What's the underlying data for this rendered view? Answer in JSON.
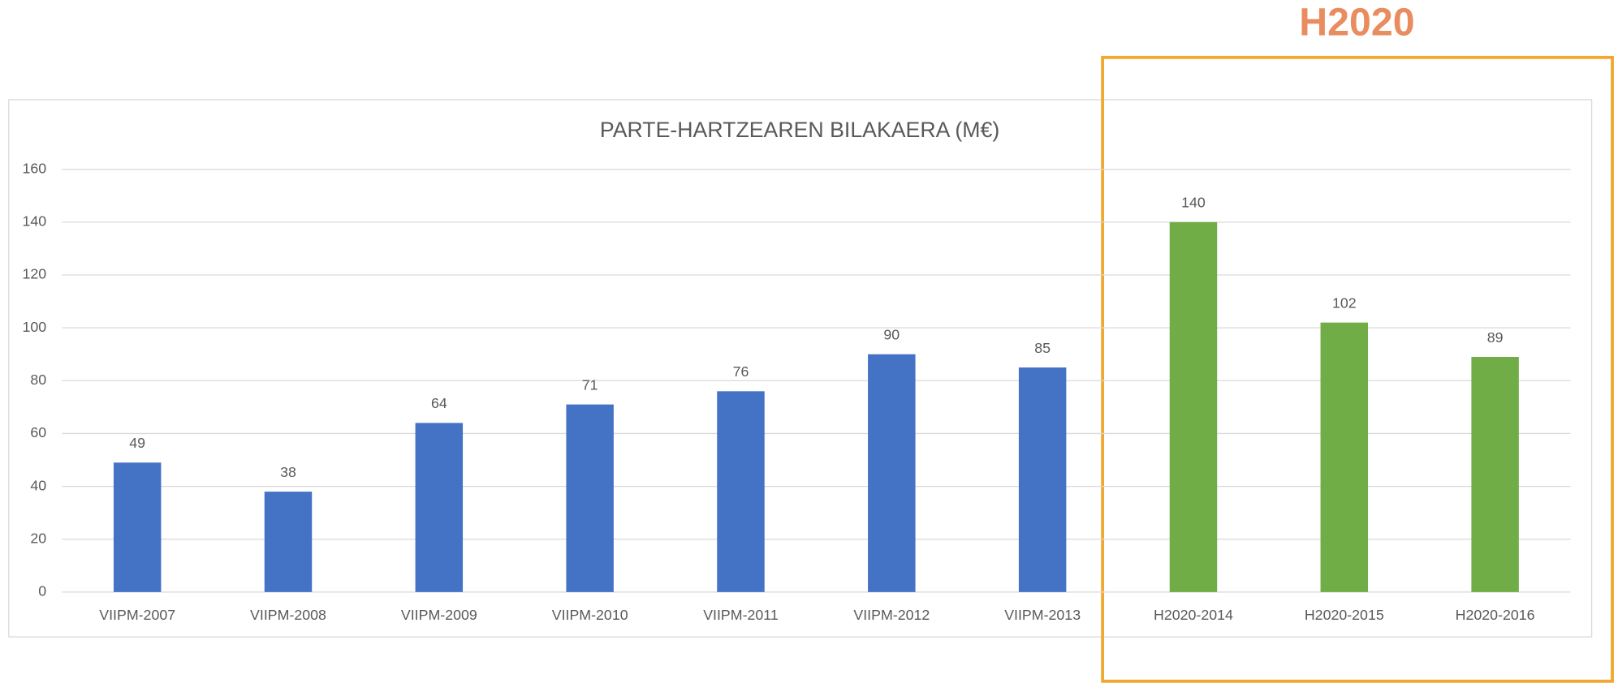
{
  "chart_data": {
    "type": "bar",
    "title": "PARTE-HARTZEAREN BILAKAERA (M€)",
    "annotation": "H2020",
    "categories": [
      "VIIPM-2007",
      "VIIPM-2008",
      "VIIPM-2009",
      "VIIPM-2010",
      "VIIPM-2011",
      "VIIPM-2012",
      "VIIPM-2013",
      "H2020-2014",
      "H2020-2015",
      "H2020-2016"
    ],
    "values": [
      49,
      38,
      64,
      71,
      76,
      90,
      85,
      140,
      102,
      89
    ],
    "colors": [
      "#4472c4",
      "#4472c4",
      "#4472c4",
      "#4472c4",
      "#4472c4",
      "#4472c4",
      "#4472c4",
      "#70ad47",
      "#70ad47",
      "#70ad47"
    ],
    "ylim": [
      0,
      160
    ],
    "yticks": [
      0,
      20,
      40,
      60,
      80,
      100,
      120,
      140,
      160
    ],
    "grid": true
  }
}
